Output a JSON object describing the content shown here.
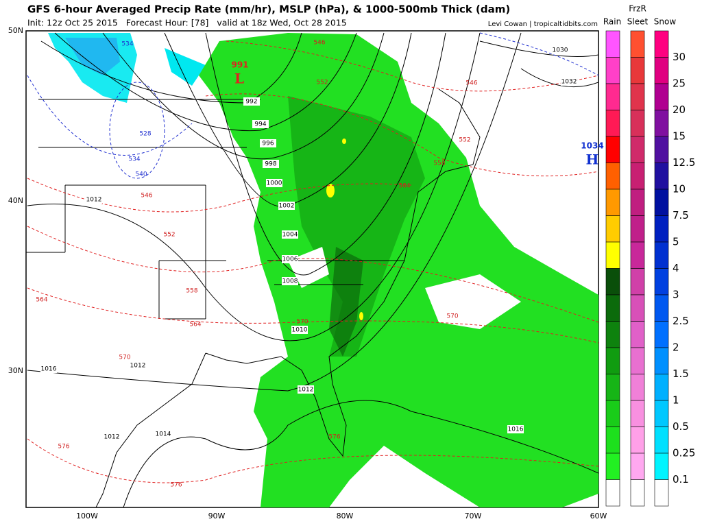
{
  "header": {
    "title": "GFS 6-hour Averaged Precip Rate (mm/hr), MSLP (hPa), & 1000-500mb Thick (dam)",
    "init": "Init: 12z Oct 25 2015   Forecast Hour: [78]   valid at 18z Wed, Oct 28 2015",
    "credit": "Levi Cowan | tropicaltidbits.com"
  },
  "legend": {
    "rain": "Rain",
    "frzr": "FrzR",
    "sleet": "Sleet",
    "snow": "Snow",
    "values": [
      "30",
      "25",
      "20",
      "15",
      "12.5",
      "10",
      "7.5",
      "5",
      "4",
      "3",
      "2.5",
      "2",
      "1.5",
      "1",
      "0.5",
      "0.25",
      "0.1"
    ]
  },
  "axes": {
    "lat": [
      "50N",
      "40N",
      "30N"
    ],
    "lon": [
      "100W",
      "90W",
      "80W",
      "70W",
      "60W"
    ]
  },
  "isobar_labels": [
    "992",
    "994",
    "996",
    "998",
    "1000",
    "1002",
    "1004",
    "1006",
    "1008",
    "1010",
    "1012",
    "1012",
    "1016",
    "1012",
    "1012",
    "1014",
    "1016",
    "1030",
    "1032"
  ],
  "thickness_labels": [
    "546",
    "552",
    "546",
    "552",
    "558",
    "564",
    "534",
    "528",
    "534",
    "540",
    "546",
    "552",
    "558",
    "564",
    "564",
    "570",
    "570",
    "570",
    "576",
    "576",
    "576"
  ],
  "pressure_centers": {
    "low": {
      "value": "991",
      "symbol": "L"
    },
    "high": {
      "value": "1034",
      "symbol": "H"
    }
  }
}
